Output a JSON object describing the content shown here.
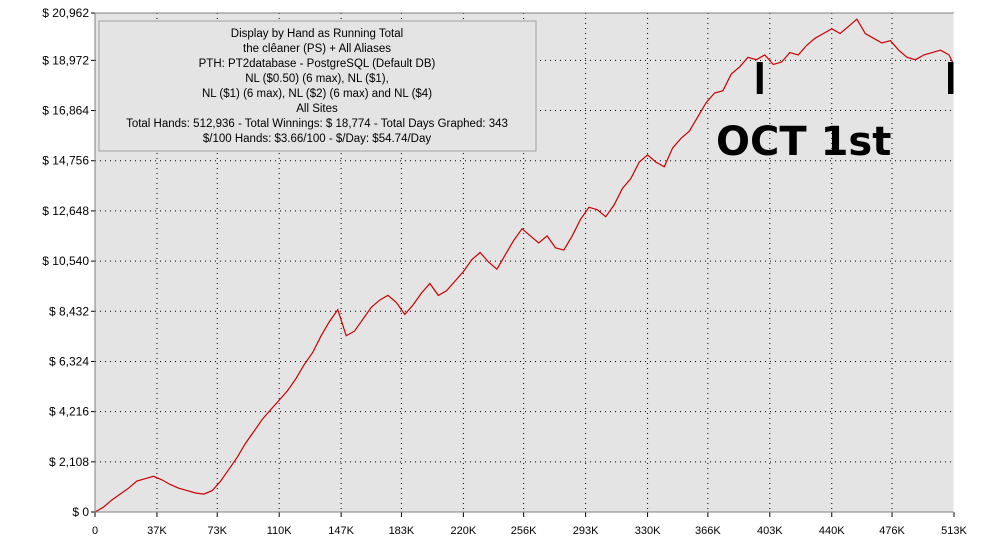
{
  "chart_data": {
    "type": "line",
    "title": "",
    "xlabel": "",
    "ylabel": "",
    "xlim": [
      0,
      513000
    ],
    "ylim": [
      0,
      20962
    ],
    "grid": true,
    "x_ticks": [
      "0",
      "37K",
      "73K",
      "110K",
      "147K",
      "183K",
      "220K",
      "256K",
      "293K",
      "330K",
      "366K",
      "403K",
      "440K",
      "476K",
      "513K"
    ],
    "x_tick_values": [
      0,
      37000,
      73000,
      110000,
      147000,
      183000,
      220000,
      256000,
      293000,
      330000,
      366000,
      403000,
      440000,
      476000,
      513000
    ],
    "y_ticks": [
      "$ 0",
      "$ 2,108",
      "$ 4,216",
      "$ 6,324",
      "$ 8,432",
      "$ 10,540",
      "$ 12,648",
      "$ 14,756",
      "$ 16,864",
      "$ 18,972",
      "$ 20,962"
    ],
    "y_tick_values": [
      0,
      2108,
      4216,
      6324,
      8432,
      10540,
      12648,
      14756,
      16864,
      18972,
      20962
    ],
    "series": [
      {
        "name": "",
        "color": "#cc0000",
        "x": [
          0,
          5000,
          10000,
          15000,
          20000,
          25000,
          30000,
          35000,
          40000,
          45000,
          50000,
          55000,
          60000,
          65000,
          70000,
          75000,
          80000,
          85000,
          90000,
          95000,
          100000,
          105000,
          110000,
          115000,
          120000,
          125000,
          130000,
          135000,
          140000,
          145000,
          150000,
          155000,
          160000,
          165000,
          170000,
          175000,
          180000,
          185000,
          190000,
          195000,
          200000,
          205000,
          210000,
          215000,
          220000,
          225000,
          230000,
          235000,
          240000,
          245000,
          250000,
          255000,
          260000,
          265000,
          270000,
          275000,
          280000,
          285000,
          290000,
          295000,
          300000,
          305000,
          310000,
          315000,
          320000,
          325000,
          330000,
          335000,
          340000,
          345000,
          350000,
          355000,
          360000,
          365000,
          370000,
          375000,
          380000,
          385000,
          390000,
          395000,
          400000,
          405000,
          410000,
          415000,
          420000,
          425000,
          430000,
          435000,
          440000,
          445000,
          450000,
          455000,
          460000,
          465000,
          470000,
          475000,
          480000,
          485000,
          490000,
          495000,
          500000,
          505000,
          510000,
          513000
        ],
        "values": [
          0,
          200,
          500,
          750,
          1000,
          1300,
          1400,
          1500,
          1350,
          1150,
          1000,
          900,
          800,
          750,
          900,
          1300,
          1800,
          2300,
          2900,
          3400,
          3900,
          4300,
          4700,
          5100,
          5600,
          6200,
          6700,
          7400,
          8000,
          8500,
          7400,
          7600,
          8100,
          8600,
          8900,
          9100,
          8800,
          8300,
          8700,
          9200,
          9600,
          9100,
          9300,
          9700,
          10100,
          10600,
          10900,
          10500,
          10200,
          10800,
          11400,
          11900,
          11600,
          11300,
          11600,
          11100,
          11000,
          11600,
          12300,
          12800,
          12700,
          12400,
          12900,
          13600,
          14000,
          14700,
          15000,
          14700,
          14500,
          15300,
          15700,
          16000,
          16600,
          17200,
          17600,
          17700,
          18400,
          18700,
          19100,
          19000,
          19200,
          18800,
          18900,
          19300,
          19200,
          19600,
          19900,
          20100,
          20300,
          20100,
          20400,
          20700,
          20100,
          19900,
          19700,
          19800,
          19400,
          19100,
          19000,
          19200,
          19300,
          19400,
          19200,
          18774
        ]
      }
    ],
    "info_box": [
      "Display by Hand as Running Total",
      "the clêaner (PS) + All Aliases",
      "PTH: PT2database - PostgreSQL (Default DB)",
      "NL ($0.50) (6 max), NL ($1),",
      "NL ($1) (6 max), NL ($2) (6 max) and NL ($4)",
      "All Sites",
      "Total Hands: 512,936 - Total Winnings: $ 18,774 - Total Days Graphed: 343",
      "$/100 Hands: $3.66/100 - $/Day: $54.74/Day"
    ],
    "annotation": {
      "text": "OCT 1st",
      "marker_x": [
        397000,
        513000
      ]
    },
    "colors": {
      "plot_background": "#e4e4e4",
      "grid": "#000000",
      "line": "#cc0000",
      "frame": "#808080",
      "info_box_background": "#e4e4e4"
    }
  }
}
